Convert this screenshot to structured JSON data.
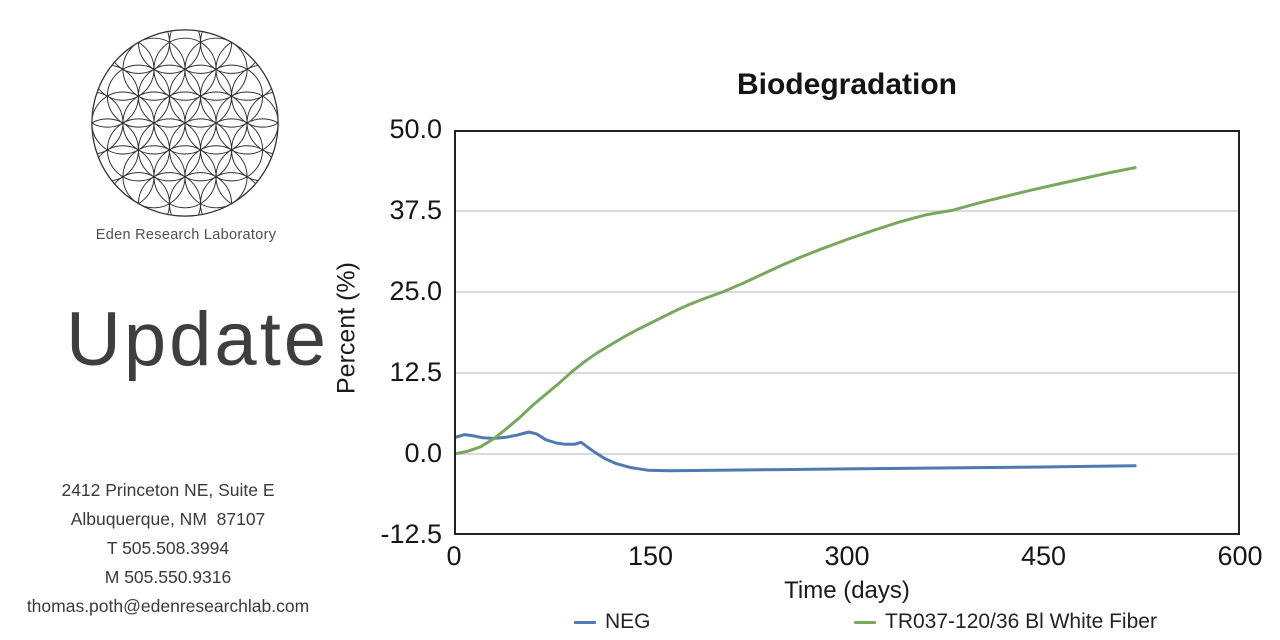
{
  "branding": {
    "logo_name": "flower-of-life",
    "org_name": "Eden Research Laboratory",
    "headline": "Update",
    "address_lines": [
      "2412 Princeton NE, Suite E",
      "Albuquerque, NM  87107",
      "T 505.508.3994",
      "M 505.550.9316",
      "thomas.poth@edenresearchlab.com"
    ]
  },
  "chart_data": {
    "type": "line",
    "title": "Biodegradation",
    "xlabel": "Time (days)",
    "ylabel": "Percent (%)",
    "xlim": [
      0,
      600
    ],
    "ylim": [
      -12.5,
      50
    ],
    "x_ticks": [
      0,
      150,
      300,
      450,
      600
    ],
    "y_ticks": [
      50,
      37.5,
      25,
      12.5,
      0,
      -12.5
    ],
    "grid": "horizontal-only",
    "legend_position": "bottom",
    "plot_border_color": "#222222",
    "gridline_color": "#cdcdcd",
    "series": [
      {
        "name": "NEG",
        "color": "#4e79b2",
        "points": [
          [
            0,
            2.5
          ],
          [
            8,
            3.0
          ],
          [
            15,
            2.8
          ],
          [
            22,
            2.5
          ],
          [
            30,
            2.4
          ],
          [
            40,
            2.6
          ],
          [
            48,
            2.9
          ],
          [
            57,
            3.4
          ],
          [
            63,
            3.1
          ],
          [
            70,
            2.2
          ],
          [
            78,
            1.7
          ],
          [
            85,
            1.5
          ],
          [
            92,
            1.5
          ],
          [
            97,
            1.8
          ],
          [
            101,
            1.2
          ],
          [
            108,
            0.2
          ],
          [
            115,
            -0.7
          ],
          [
            124,
            -1.5
          ],
          [
            135,
            -2.1
          ],
          [
            148,
            -2.5
          ],
          [
            165,
            -2.6
          ],
          [
            200,
            -2.5
          ],
          [
            250,
            -2.4
          ],
          [
            300,
            -2.3
          ],
          [
            350,
            -2.2
          ],
          [
            400,
            -2.1
          ],
          [
            450,
            -2.0
          ],
          [
            490,
            -1.9
          ],
          [
            520,
            -1.8
          ]
        ]
      },
      {
        "name": "TR037-120/36 Bl White Fiber",
        "color": "#79a85c",
        "points": [
          [
            0,
            0
          ],
          [
            10,
            0.4
          ],
          [
            20,
            1.1
          ],
          [
            30,
            2.3
          ],
          [
            40,
            3.9
          ],
          [
            50,
            5.6
          ],
          [
            60,
            7.5
          ],
          [
            70,
            9.2
          ],
          [
            80,
            10.9
          ],
          [
            90,
            12.7
          ],
          [
            100,
            14.3
          ],
          [
            110,
            15.7
          ],
          [
            120,
            16.9
          ],
          [
            130,
            18.1
          ],
          [
            140,
            19.2
          ],
          [
            150,
            20.2
          ],
          [
            160,
            21.2
          ],
          [
            170,
            22.2
          ],
          [
            180,
            23.1
          ],
          [
            190,
            23.9
          ],
          [
            205,
            25.0
          ],
          [
            220,
            26.3
          ],
          [
            235,
            27.7
          ],
          [
            250,
            29.1
          ],
          [
            265,
            30.4
          ],
          [
            280,
            31.6
          ],
          [
            300,
            33.1
          ],
          [
            320,
            34.5
          ],
          [
            340,
            35.8
          ],
          [
            360,
            36.9
          ],
          [
            380,
            37.6
          ],
          [
            400,
            38.7
          ],
          [
            420,
            39.7
          ],
          [
            440,
            40.7
          ],
          [
            460,
            41.6
          ],
          [
            480,
            42.5
          ],
          [
            500,
            43.4
          ],
          [
            520,
            44.2
          ]
        ]
      }
    ]
  }
}
